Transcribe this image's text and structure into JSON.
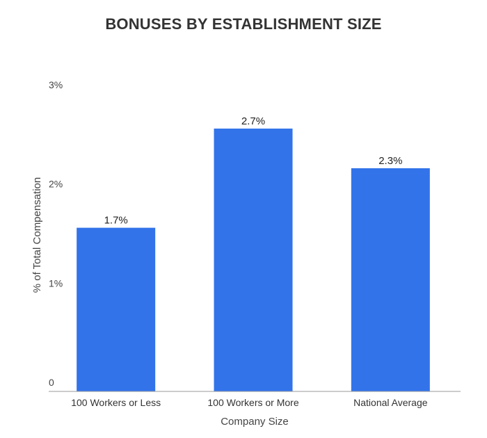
{
  "chart_data": {
    "type": "bar",
    "title": "BONUSES BY ESTABLISHMENT SIZE",
    "xlabel": "Company Size",
    "ylabel": "% of Total Compensation",
    "categories": [
      "100 Workers or Less",
      "100 Workers or More",
      "National Average"
    ],
    "values": [
      1.65,
      2.65,
      2.25
    ],
    "value_labels": [
      "1.7%",
      "2.7%",
      "2.3%"
    ],
    "ylim": [
      0,
      3
    ],
    "yticks": [
      0,
      1,
      2,
      3
    ],
    "ytick_labels": [
      "0",
      "1%",
      "2%",
      "3%"
    ],
    "grid": false,
    "legend": "none",
    "colors": {
      "bar": "#3273ea",
      "text": "#333333",
      "axis_text": "#444444",
      "baseline": "#999999"
    }
  }
}
